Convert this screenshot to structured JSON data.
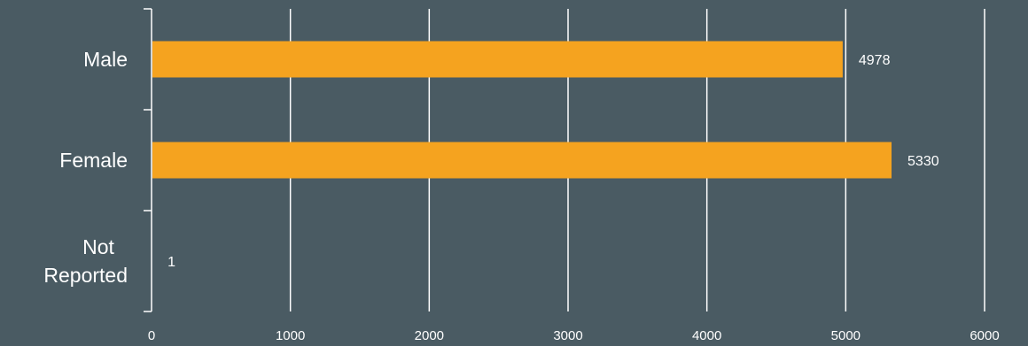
{
  "chart_data": {
    "type": "bar",
    "orientation": "horizontal",
    "categories": [
      "Male",
      "Female",
      "Not Reported"
    ],
    "category_lines": [
      [
        "Male"
      ],
      [
        "Female"
      ],
      [
        "Not",
        "Reported"
      ]
    ],
    "values": [
      4978,
      5330,
      1
    ],
    "value_labels": [
      "4978",
      "5330",
      "1"
    ],
    "xlim": [
      0,
      6000
    ],
    "xticks": [
      0,
      1000,
      2000,
      3000,
      4000,
      5000,
      6000
    ],
    "xtick_labels": [
      "0",
      "1000",
      "2000",
      "3000",
      "4000",
      "5000",
      "6000"
    ],
    "grid": true,
    "title": "",
    "xlabel": "",
    "ylabel": "",
    "colors": {
      "background": "#4a5b63",
      "bar": "#f5a31f",
      "grid": "#ffffff",
      "text": "#ffffff"
    }
  }
}
